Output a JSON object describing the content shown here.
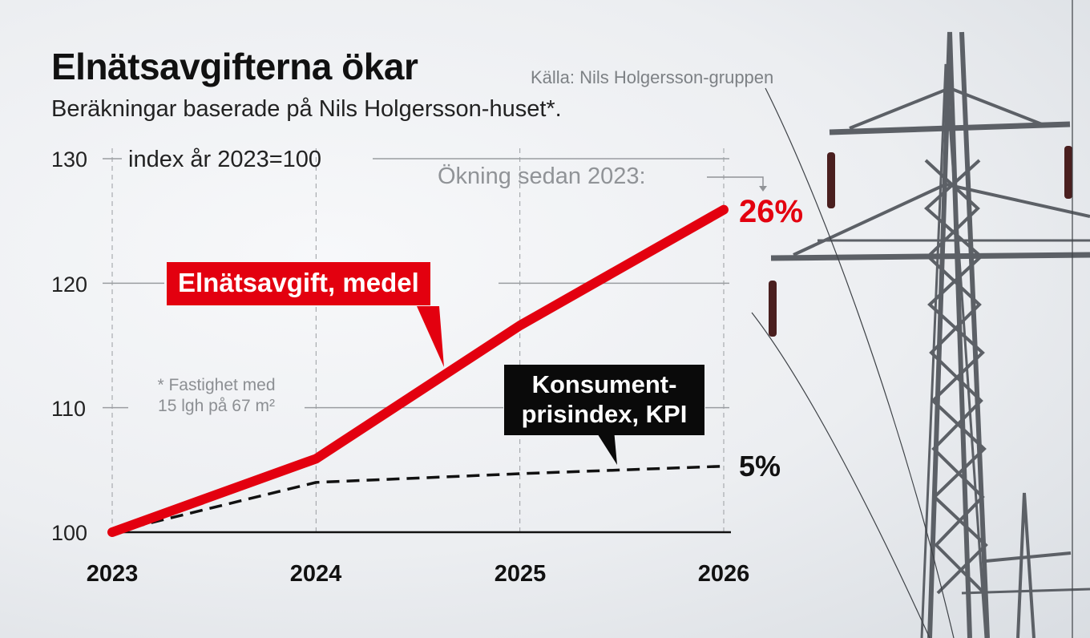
{
  "title": "Elnätsavgifterna ökar",
  "source": "Källa: Nils Holgersson-gruppen",
  "subtitle": "Beräkningar baserade på Nils Holgersson-huset*.",
  "index_note": "index år 2023=100",
  "increase_label": "Ökning sedan 2023:",
  "footnote_line1": "* Fastighet med",
  "footnote_line2": "15 lgh på 67 m²",
  "callouts": {
    "red": "Elnätsavgift, medel",
    "black_line1": "Konsument-",
    "black_line2": "prisindex, KPI"
  },
  "end_labels": {
    "red": "26%",
    "black": "5%"
  },
  "colors": {
    "red": "#e3000f",
    "black": "#111111",
    "grid": "#9a9da1",
    "background": "#eceef1"
  },
  "chart_data": {
    "type": "line",
    "title": "Elnätsavgifterna ökar",
    "subtitle": "Beräkningar baserade på Nils Holgersson-huset*.",
    "x": [
      2023,
      2024,
      2025,
      2026
    ],
    "xticks": [
      "2023",
      "2024",
      "2025",
      "2026"
    ],
    "yticks": [
      "100",
      "110",
      "120",
      "130"
    ],
    "ylim": [
      100,
      130
    ],
    "ylabel": "index år 2023=100",
    "grid": true,
    "series": [
      {
        "name": "Elnätsavgift, medel",
        "values": [
          100,
          105.9,
          116.6,
          125.9
        ],
        "color": "#e3000f",
        "style": "solid"
      },
      {
        "name": "Konsument-prisindex, KPI",
        "values": [
          100,
          104.0,
          104.7,
          105.3
        ],
        "color": "#111111",
        "style": "dashed"
      }
    ],
    "annotations": [
      "26%",
      "5%"
    ]
  }
}
